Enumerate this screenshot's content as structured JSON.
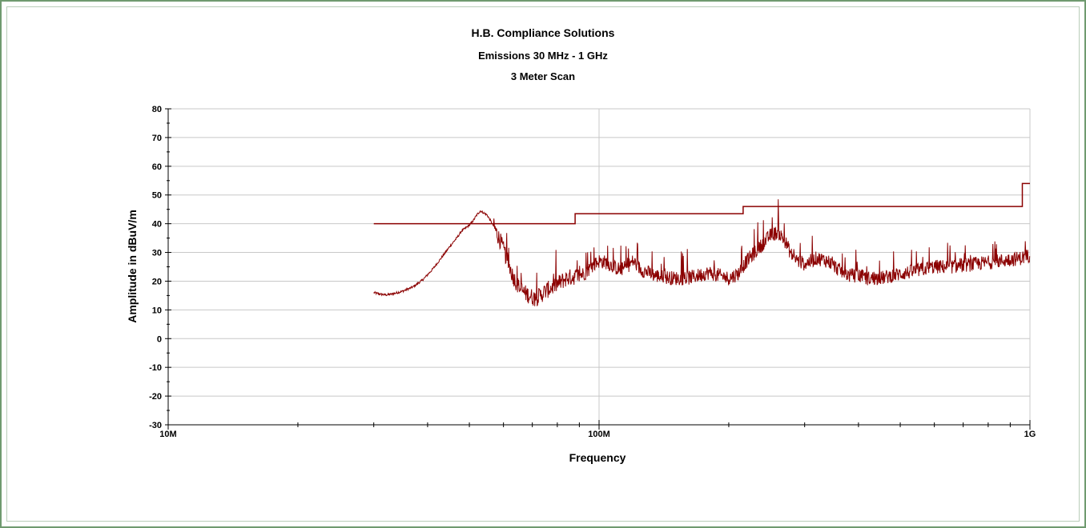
{
  "chart_data": {
    "type": "line",
    "title": "H.B. Compliance Solutions",
    "subtitle": "Emissions 30 MHz - 1 GHz",
    "subtitle2": "3 Meter Scan",
    "xlabel": "Frequency",
    "ylabel": "Amplitude in dBuV/m",
    "x_scale": "log",
    "xlim_hz": [
      10000000,
      1000000000
    ],
    "ylim": [
      -30,
      80
    ],
    "y_ticks": [
      80,
      70,
      60,
      50,
      40,
      30,
      20,
      10,
      0,
      -10,
      -20,
      -30
    ],
    "x_major_ticks": [
      {
        "value_hz": 10000000,
        "label": "10M"
      },
      {
        "value_hz": 100000000,
        "label": "100M"
      },
      {
        "value_hz": 1000000000,
        "label": "1G"
      }
    ],
    "grid": true,
    "colors": {
      "trace": "#8b0000",
      "limit": "#8b0000",
      "grid": "#c8c8c8",
      "frame": "#6f9a6f"
    },
    "series": [
      {
        "kind": "limit",
        "x_mhz": [
          30,
          88,
          88,
          216,
          216,
          960,
          960,
          1000
        ],
        "y": [
          40,
          40,
          43.5,
          43.5,
          46,
          46,
          54,
          54
        ]
      },
      {
        "kind": "measured",
        "x_mhz": [
          30,
          31,
          32,
          33,
          35,
          37,
          39,
          41,
          43,
          45,
          47,
          48,
          49,
          50,
          51,
          52,
          53,
          55,
          57,
          59,
          61,
          63,
          65,
          67,
          69,
          71,
          73,
          75,
          78,
          81,
          84,
          87,
          90,
          93,
          96,
          100,
          104,
          108,
          112,
          116,
          120,
          125,
          130,
          135,
          140,
          150,
          160,
          170,
          180,
          190,
          200,
          210,
          220,
          230,
          240,
          250,
          260,
          270,
          280,
          290,
          300,
          320,
          340,
          360,
          380,
          400,
          420,
          450,
          480,
          520,
          560,
          600,
          650,
          700,
          750,
          800,
          850,
          900,
          950,
          1000
        ],
        "y": [
          16,
          15.5,
          15.2,
          15.5,
          16.5,
          18,
          20.5,
          24,
          28,
          32,
          35.5,
          37.5,
          38.5,
          39.5,
          41,
          43,
          44.5,
          43,
          39,
          34,
          28,
          22,
          18,
          16,
          15,
          14,
          15,
          16.5,
          18,
          19.5,
          21,
          21.5,
          22,
          23,
          25,
          27,
          26.5,
          25,
          24,
          25,
          27,
          24,
          23,
          22,
          21.5,
          21,
          21,
          22,
          23,
          22,
          21,
          22.5,
          27,
          30,
          33,
          36,
          37,
          34,
          29,
          27,
          26,
          28,
          27,
          24,
          22,
          22,
          21,
          21,
          22,
          23,
          24,
          25,
          25,
          25.5,
          26,
          26.5,
          27,
          27.5,
          28,
          29
        ]
      }
    ]
  }
}
